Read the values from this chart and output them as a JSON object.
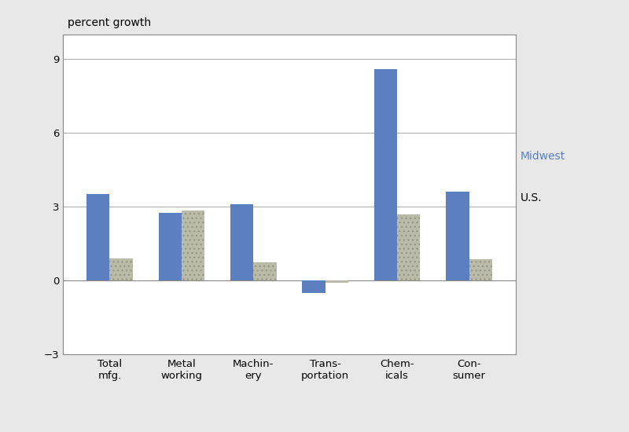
{
  "categories": [
    "Total\nmfg.",
    "Metal\nworking",
    "Machin-\nery",
    "Trans-\nportation",
    "Chem-\nicals",
    "Con-\nsumer"
  ],
  "midwest_values": [
    3.5,
    2.75,
    3.1,
    -0.5,
    8.6,
    3.6
  ],
  "us_values": [
    0.9,
    2.85,
    0.75,
    -0.1,
    2.7,
    0.85
  ],
  "midwest_color": "#5B7FBF",
  "us_color": "#BBBBAA",
  "ylabel": "percent growth",
  "ylim": [
    -3,
    10.0
  ],
  "yticks": [
    -3,
    0,
    3,
    6,
    9
  ],
  "bar_width": 0.32,
  "background_color": "#FFFFFF",
  "outer_background": "#E8E8E8",
  "legend_midwest": "Midwest",
  "legend_us": "U.S.",
  "label_fontsize": 10,
  "tick_fontsize": 9.5,
  "ylabel_fontsize": 10
}
